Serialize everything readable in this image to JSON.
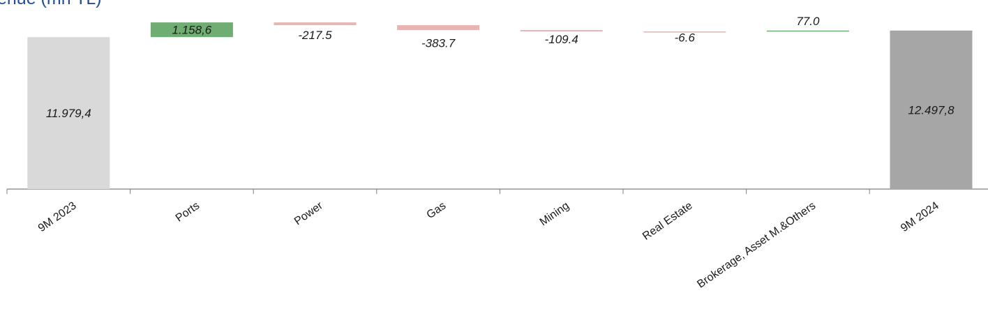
{
  "title": "enue (mn TL)",
  "chart_data": {
    "type": "waterfall",
    "title": "enue (mn TL)",
    "categories": [
      "9M 2023",
      "Ports",
      "Power",
      "Gas",
      "Mining",
      "Real Estate",
      "Brokerage, Asset M.&Others",
      "9M 2024"
    ],
    "values": [
      11979.4,
      1158.6,
      -217.5,
      -383.7,
      -109.4,
      -6.6,
      77.0,
      12497.8
    ],
    "labels": [
      "11.979,4",
      "1.158,6",
      "-217.5",
      "-383.7",
      "-109.4",
      "-6.6",
      "77.0",
      "12.497,8"
    ],
    "kinds": [
      "total",
      "delta",
      "delta",
      "delta",
      "delta",
      "delta",
      "delta",
      "total"
    ],
    "colors": {
      "start_total": "#d9d9d9",
      "end_total": "#a6a6a6",
      "increase": "#70ad73",
      "decrease": "#e8b4b4",
      "axis": "#7f7f7f"
    },
    "ylim": [
      0,
      13200
    ],
    "grid": false
  }
}
